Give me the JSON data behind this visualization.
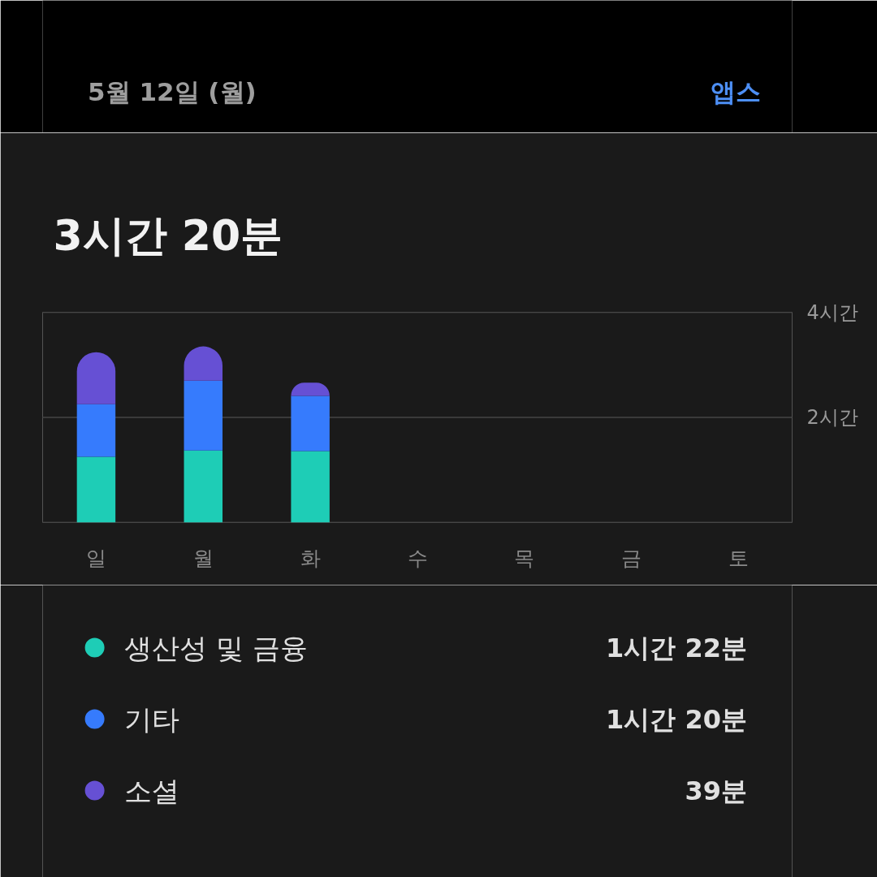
{
  "chart_data": {
    "type": "bar",
    "title": "3시간 20분",
    "stacked": true,
    "categories": [
      "일",
      "월",
      "화",
      "수",
      "목",
      "금",
      "토"
    ],
    "series": [
      {
        "name": "생산성 및 금융",
        "color": "#1ecdb6",
        "values": [
          1.25,
          1.37,
          1.36,
          null,
          null,
          null,
          null
        ]
      },
      {
        "name": "기타",
        "color": "#367bfd",
        "values": [
          1.0,
          1.33,
          1.05,
          null,
          null,
          null,
          null
        ]
      },
      {
        "name": "소셜",
        "color": "#6650d4",
        "values": [
          0.99,
          0.65,
          0.25,
          null,
          null,
          null,
          null
        ]
      }
    ],
    "ylim": [
      0,
      4
    ],
    "yticks": [
      {
        "value": 0,
        "label": null
      },
      {
        "value": 2,
        "label": "2시간"
      },
      {
        "value": 4,
        "label": "4시간"
      }
    ],
    "grid": "y",
    "legend": "bottom",
    "annotations": [
      "5월 12일 (월)",
      "앱스",
      "1시간 22분",
      "1시간 20분",
      "39분"
    ]
  }
}
